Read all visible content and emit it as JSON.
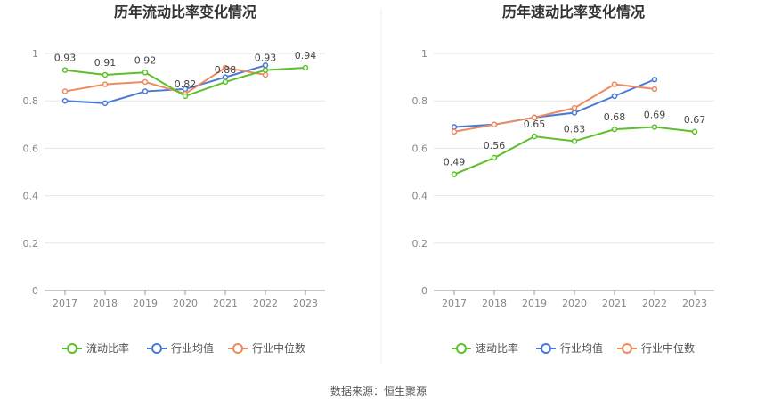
{
  "source": "数据来源：恒生聚源",
  "chart_data": [
    {
      "type": "line",
      "title": "历年流动比率变化情况",
      "categories": [
        "2017",
        "2018",
        "2019",
        "2020",
        "2021",
        "2022",
        "2023"
      ],
      "ylim": [
        0,
        1
      ],
      "yticks": [
        "0",
        "0.2",
        "0.4",
        "0.6",
        "0.8",
        "1"
      ],
      "grid": true,
      "legend_position": "bottom",
      "series": [
        {
          "name": "流动比率",
          "color": "#5dc02a",
          "values": [
            0.93,
            0.91,
            0.92,
            0.82,
            0.88,
            0.93,
            0.94
          ],
          "labels": [
            "0.93",
            "0.91",
            "0.92",
            "0.82",
            "0.88",
            "0.93",
            "0.94"
          ]
        },
        {
          "name": "行业均值",
          "color": "#4a78d6",
          "values": [
            0.8,
            0.79,
            0.84,
            0.85,
            0.9,
            0.95,
            null
          ]
        },
        {
          "name": "行业中位数",
          "color": "#ee8a5f",
          "values": [
            0.84,
            0.87,
            0.88,
            0.83,
            0.94,
            0.91,
            null
          ]
        }
      ]
    },
    {
      "type": "line",
      "title": "历年速动比率变化情况",
      "categories": [
        "2017",
        "2018",
        "2019",
        "2020",
        "2021",
        "2022",
        "2023"
      ],
      "ylim": [
        0,
        1
      ],
      "yticks": [
        "0",
        "0.2",
        "0.4",
        "0.6",
        "0.8",
        "1"
      ],
      "grid": true,
      "legend_position": "bottom",
      "series": [
        {
          "name": "速动比率",
          "color": "#5dc02a",
          "values": [
            0.49,
            0.56,
            0.65,
            0.63,
            0.68,
            0.69,
            0.67
          ],
          "labels": [
            "0.49",
            "0.56",
            "0.65",
            "0.63",
            "0.68",
            "0.69",
            "0.67"
          ]
        },
        {
          "name": "行业均值",
          "color": "#4a78d6",
          "values": [
            0.69,
            0.7,
            0.73,
            0.75,
            0.82,
            0.89,
            null
          ]
        },
        {
          "name": "行业中位数",
          "color": "#ee8a5f",
          "values": [
            0.67,
            0.7,
            0.73,
            0.77,
            0.87,
            0.85,
            null
          ]
        }
      ]
    }
  ]
}
